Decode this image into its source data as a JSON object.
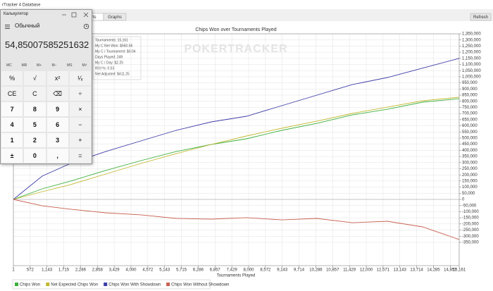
{
  "window": {
    "title": "rTracker 4 Database",
    "tabs": [
      "Reports",
      "Graphs"
    ],
    "refresh": "Refresh"
  },
  "calculator": {
    "title": "Калькулятор",
    "mode": "Обычный",
    "display": "54,85007585251632",
    "memory": [
      "MC",
      "MR",
      "M+",
      "M−",
      "MS",
      "M˅"
    ],
    "buttons": [
      [
        "%",
        "√",
        "x²",
        "¹⁄ₓ"
      ],
      [
        "CE",
        "C",
        "⌫",
        "÷"
      ],
      [
        "7",
        "8",
        "9",
        "×"
      ],
      [
        "4",
        "5",
        "6",
        "−"
      ],
      [
        "1",
        "2",
        "3",
        "+"
      ],
      [
        "±",
        "0",
        ",",
        "="
      ]
    ]
  },
  "chart_data": {
    "type": "line",
    "title": "Chips Won over Tournaments Played",
    "x_label": "Tournaments Played",
    "watermark": "POKERTRACKER",
    "info": [
      "Tournaments: 15,161",
      "My C Net Won: $560.56",
      "My C / Tournament: $0.04",
      "Days Played: 249",
      "My C / Day: $2.25",
      "ROI %: 0.53",
      "Net Adjusted: $411.25"
    ],
    "x": [
      1,
      983,
      1941,
      3138,
      4336,
      5533,
      6731,
      7928,
      9126,
      10323,
      11521,
      12718,
      13916,
      15161
    ],
    "series": [
      {
        "name": "Chips Won",
        "color": "#3cb03c",
        "values": [
          0,
          86000,
          149000,
          236000,
          316000,
          390000,
          448000,
          494000,
          563000,
          620000,
          689000,
          735000,
          793000,
          821000
        ]
      },
      {
        "name": "Net Expected Chips Won",
        "color": "#c0b830",
        "values": [
          0,
          63000,
          120000,
          207000,
          293000,
          373000,
          448000,
          517000,
          580000,
          638000,
          701000,
          752000,
          804000,
          833000
        ]
      },
      {
        "name": "Chips Won With Showdown",
        "color": "#3c3ca8",
        "values": [
          0,
          190000,
          293000,
          390000,
          477000,
          563000,
          632000,
          678000,
          764000,
          850000,
          936000,
          994000,
          1070000,
          1150000
        ]
      },
      {
        "name": "Chips Won Without Showdown",
        "color": "#c86050",
        "values": [
          0,
          -52000,
          -80000,
          -109000,
          -126000,
          -155000,
          -161000,
          -149000,
          -167000,
          -155000,
          -190000,
          -178000,
          -224000,
          -327000
        ]
      }
    ],
    "xlim": [
      1,
      15161
    ],
    "ylim": [
      -540000,
      1350000
    ],
    "grid": true,
    "xticks": [
      1,
      572,
      {
        "value": 1143,
        "label": "1,143"
      },
      {
        "value": 1715,
        "label": "1,715"
      },
      {
        "value": 2286,
        "label": "2,286"
      },
      {
        "value": 2858,
        "label": "2,858"
      },
      {
        "value": 3429,
        "label": "3,429"
      },
      {
        "value": 4000,
        "label": "4,000"
      },
      {
        "value": 4572,
        "label": "4,572"
      },
      {
        "value": 5143,
        "label": "5,143"
      },
      {
        "value": 5715,
        "label": "5,715"
      },
      {
        "value": 6286,
        "label": "6,286"
      },
      {
        "value": 6857,
        "label": "6,857"
      },
      {
        "value": 7429,
        "label": "7,429"
      },
      {
        "value": 8000,
        "label": "8,000"
      },
      {
        "value": 8572,
        "label": "8,572"
      },
      {
        "value": 9143,
        "label": "9,143"
      },
      {
        "value": 9714,
        "label": "9,714"
      },
      {
        "value": 10286,
        "label": "10,286"
      },
      {
        "value": 10857,
        "label": "10,857"
      },
      {
        "value": 11429,
        "label": "11,429"
      },
      {
        "value": 12000,
        "label": "12,000"
      },
      {
        "value": 12571,
        "label": "12,571"
      },
      {
        "value": 13143,
        "label": "13,143"
      },
      {
        "value": 13714,
        "label": "13,714"
      },
      {
        "value": 14285,
        "label": "14,285"
      },
      {
        "value": 14857,
        "label": "14,857"
      },
      {
        "value": 15161,
        "label": "15,161"
      }
    ],
    "yticks": [
      {
        "value": -350000,
        "label": "-350,000"
      },
      {
        "value": -300000,
        "label": "-300,000"
      },
      {
        "value": -250000,
        "label": "-250,000"
      },
      {
        "value": -200000,
        "label": "-200,000"
      },
      {
        "value": -150000,
        "label": "-150,000"
      },
      {
        "value": -100000,
        "label": "-100,000"
      },
      {
        "value": -50000,
        "label": "-50,000"
      },
      0,
      {
        "value": 50000,
        "label": "50,000"
      },
      {
        "value": 100000,
        "label": "100,000"
      },
      {
        "value": 150000,
        "label": "150,000"
      },
      {
        "value": 200000,
        "label": "200,000"
      },
      {
        "value": 250000,
        "label": "250,000"
      },
      {
        "value": 300000,
        "label": "300,000"
      },
      {
        "value": 350000,
        "label": "350,000"
      },
      {
        "value": 400000,
        "label": "400,000"
      },
      {
        "value": 450000,
        "label": "450,000"
      },
      {
        "value": 500000,
        "label": "500,000"
      },
      {
        "value": 550000,
        "label": "550,000"
      },
      {
        "value": 600000,
        "label": "600,000"
      },
      {
        "value": 650000,
        "label": "650,000"
      },
      {
        "value": 700000,
        "label": "700,000"
      },
      {
        "value": 750000,
        "label": "750,000"
      },
      {
        "value": 800000,
        "label": "800,000"
      },
      {
        "value": 850000,
        "label": "850,000"
      },
      {
        "value": 900000,
        "label": "900,000"
      },
      {
        "value": 950000,
        "label": "950,000"
      },
      {
        "value": 1000000,
        "label": "1,000,000"
      },
      {
        "value": 1050000,
        "label": "1,050,000"
      },
      {
        "value": 1100000,
        "label": "1,100,000"
      },
      {
        "value": 1150000,
        "label": "1,150,000"
      },
      {
        "value": 1200000,
        "label": "1,200,000"
      },
      {
        "value": 1250000,
        "label": "1,250,000"
      },
      {
        "value": 1300000,
        "label": "1,300,000"
      },
      {
        "value": 1350000,
        "label": "1,350,000"
      }
    ]
  }
}
